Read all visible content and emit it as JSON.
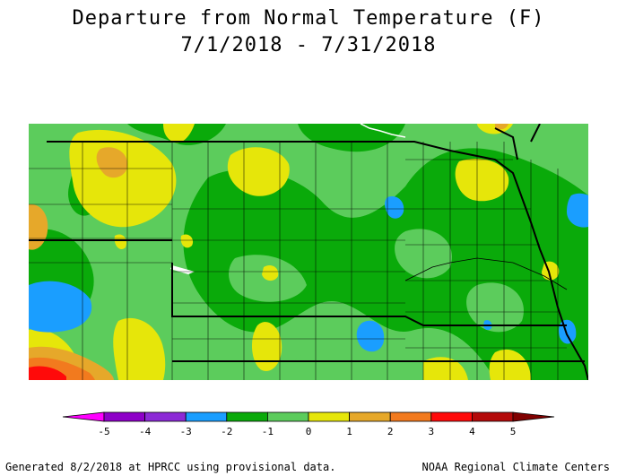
{
  "title": {
    "line1": "Departure from Normal Temperature (F)",
    "line2": "7/1/2018 - 7/31/2018"
  },
  "legend": {
    "ticks": [
      "-5",
      "-4",
      "-3",
      "-2",
      "-1",
      "0",
      "1",
      "2",
      "3",
      "4",
      "5"
    ],
    "colors": [
      "#ff00ff",
      "#8e00c8",
      "#8c2ad6",
      "#1a9eff",
      "#0aaa0a",
      "#5ccc5c",
      "#e6e60a",
      "#e6a82a",
      "#f27a1e",
      "#ff0a0a",
      "#b40a0a",
      "#800000"
    ]
  },
  "footer": {
    "left": "Generated 8/2/2018 at HPRCC using provisional data.",
    "right": "NOAA Regional Climate Centers"
  }
}
